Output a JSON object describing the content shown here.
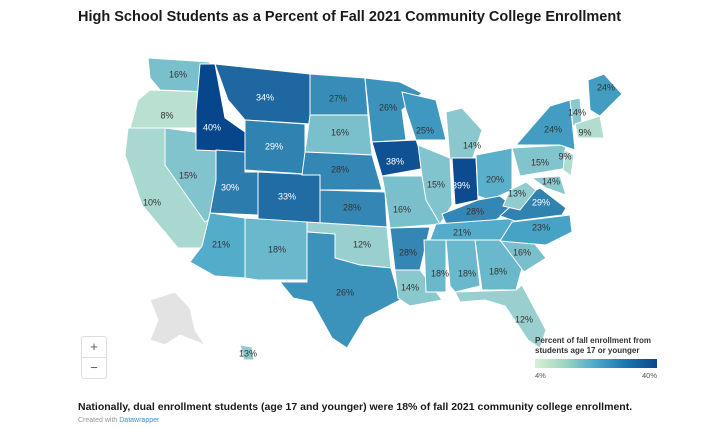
{
  "title": "High School Students as a Percent of Fall 2021 Community College Enrollment",
  "colors": {
    "low": "#d9f0d3",
    "mid": "#4aa8c9",
    "high": "#08468c",
    "no_data": "#e3e3e3",
    "border": "#ffffff"
  },
  "chart_data": {
    "type": "choropleth",
    "title": "High School Students as a Percent of Fall 2021 Community College Enrollment",
    "legend": {
      "title": "Percent of fall enrollment from students age 17 or younger",
      "min_label": "4%",
      "max_label": "40%",
      "min": 4,
      "max": 40,
      "placement": "bottom-right"
    },
    "states": [
      {
        "id": "WA",
        "value": 16,
        "label": "16%"
      },
      {
        "id": "OR",
        "value": 8,
        "label": "8%"
      },
      {
        "id": "CA",
        "value": 10,
        "label": "10%"
      },
      {
        "id": "NV",
        "value": 15,
        "label": "15%"
      },
      {
        "id": "ID",
        "value": 40,
        "label": "40%"
      },
      {
        "id": "MT",
        "value": 34,
        "label": "34%"
      },
      {
        "id": "WY",
        "value": 29,
        "label": "29%"
      },
      {
        "id": "UT",
        "value": 30,
        "label": "30%"
      },
      {
        "id": "CO",
        "value": 33,
        "label": "33%"
      },
      {
        "id": "AZ",
        "value": 21,
        "label": "21%"
      },
      {
        "id": "NM",
        "value": 18,
        "label": "18%"
      },
      {
        "id": "ND",
        "value": 27,
        "label": "27%"
      },
      {
        "id": "SD",
        "value": 16,
        "label": "16%"
      },
      {
        "id": "NE",
        "value": 28,
        "label": "28%"
      },
      {
        "id": "KS",
        "value": 28,
        "label": "28%"
      },
      {
        "id": "OK",
        "value": 12,
        "label": "12%"
      },
      {
        "id": "TX",
        "value": 26,
        "label": "26%"
      },
      {
        "id": "MN",
        "value": 26,
        "label": "26%"
      },
      {
        "id": "IA",
        "value": 38,
        "label": "38%"
      },
      {
        "id": "MO",
        "value": 16,
        "label": "16%"
      },
      {
        "id": "AR",
        "value": 28,
        "label": "28%"
      },
      {
        "id": "LA",
        "value": 14,
        "label": "14%"
      },
      {
        "id": "WI",
        "value": 25,
        "label": "25%"
      },
      {
        "id": "MI",
        "value": 14,
        "label": "14%"
      },
      {
        "id": "IL",
        "value": 15,
        "label": "15%"
      },
      {
        "id": "IN",
        "value": 39,
        "label": "39%"
      },
      {
        "id": "OH",
        "value": 20,
        "label": "20%"
      },
      {
        "id": "KY",
        "value": 28,
        "label": "28%"
      },
      {
        "id": "TN",
        "value": 21,
        "label": "21%"
      },
      {
        "id": "MS",
        "value": 18,
        "label": "18%"
      },
      {
        "id": "AL",
        "value": 18,
        "label": "18%"
      },
      {
        "id": "GA",
        "value": 18,
        "label": "18%"
      },
      {
        "id": "FL",
        "value": 12,
        "label": "12%"
      },
      {
        "id": "SC",
        "value": 16,
        "label": "16%"
      },
      {
        "id": "NC",
        "value": 23,
        "label": "23%"
      },
      {
        "id": "VA",
        "value": 29,
        "label": "29%"
      },
      {
        "id": "WV",
        "value": 13,
        "label": "13%"
      },
      {
        "id": "MD",
        "value": 14,
        "label": "14%"
      },
      {
        "id": "PA",
        "value": 15,
        "label": "15%"
      },
      {
        "id": "NY",
        "value": 24,
        "label": "24%"
      },
      {
        "id": "NJ",
        "value": 9,
        "label": "9%"
      },
      {
        "id": "VT",
        "value": 14,
        "label": "14%"
      },
      {
        "id": "MA",
        "value": 9,
        "label": "9%"
      },
      {
        "id": "ME",
        "value": 24,
        "label": "24%"
      },
      {
        "id": "HI",
        "value": 13,
        "label": "13%"
      },
      {
        "id": "AK",
        "value": null,
        "label": ""
      }
    ]
  },
  "zoom": {
    "plus": "+",
    "minus": "−"
  },
  "footer": "Nationally, dual enrollment students (age 17 and younger) were 18% of fall 2021 community college enrollment.",
  "credit": {
    "prefix": "Created with",
    "link": "Datawrapper"
  }
}
